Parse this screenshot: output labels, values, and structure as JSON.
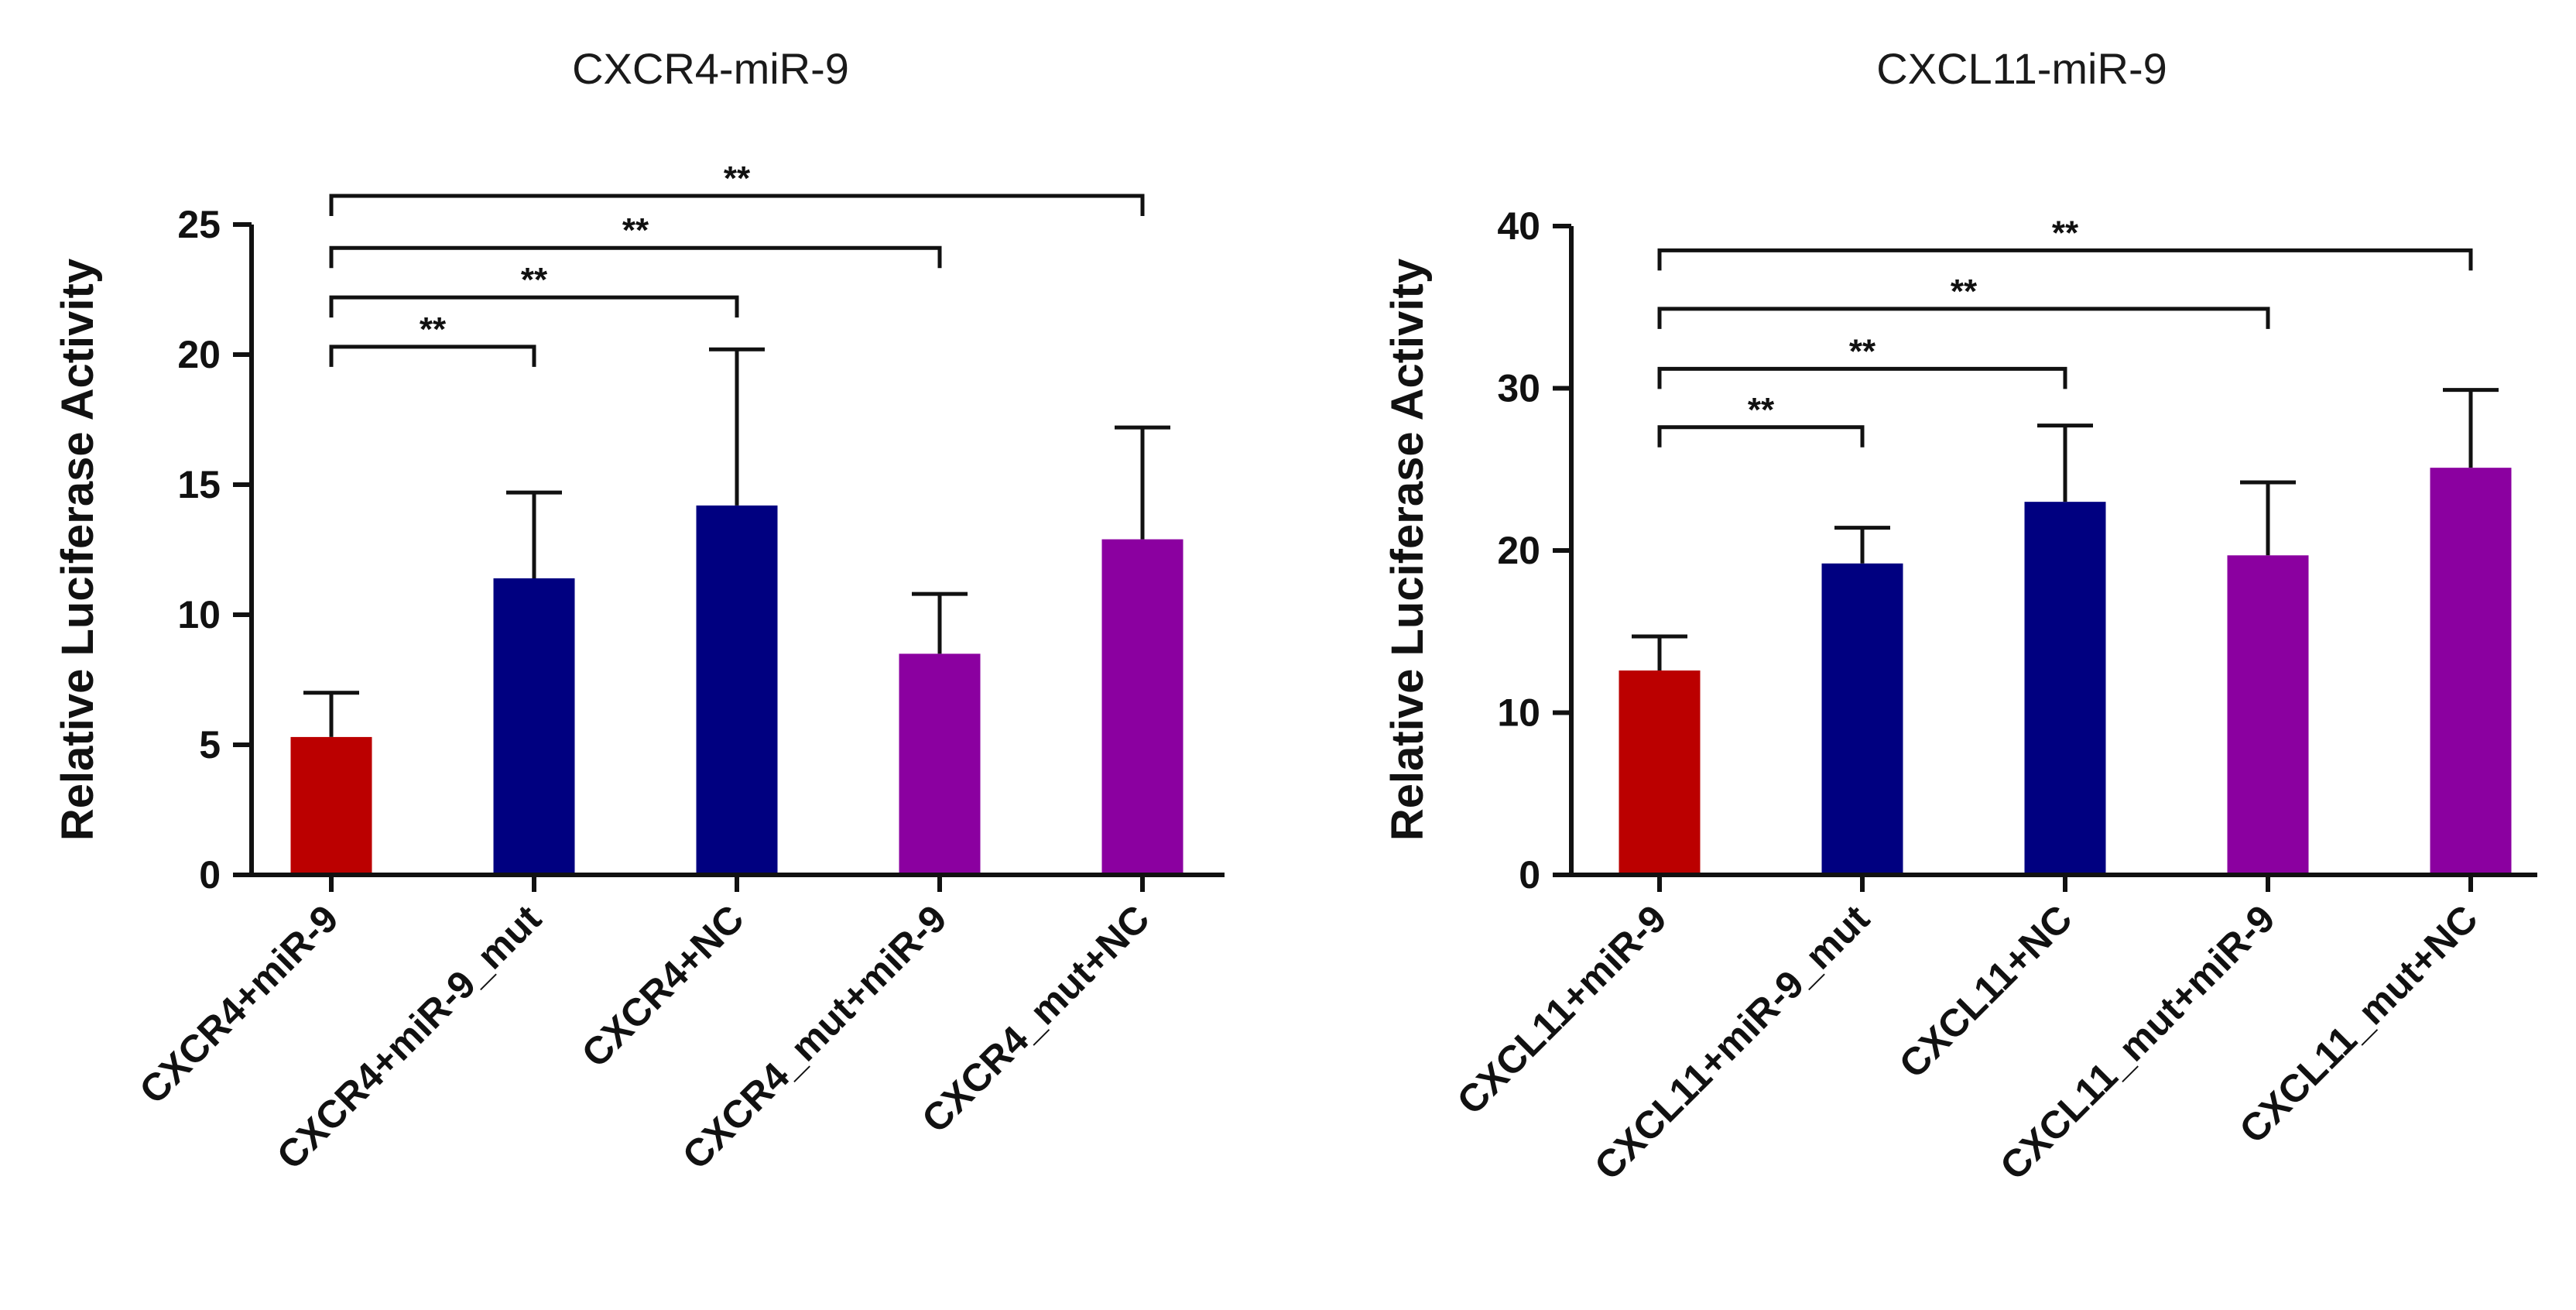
{
  "chart_data": [
    {
      "type": "bar",
      "title": "CXCR4-miR-9",
      "ylabel": "Relative Luciferase Activity",
      "xlabel": "",
      "ylim": [
        0,
        25
      ],
      "yticks": [
        0,
        5,
        10,
        15,
        20,
        25
      ],
      "categories": [
        "CXCR4+miR-9",
        "CXCR4+miR-9_mut",
        "CXCR4+NC",
        "CXCR4_mut+miR-9",
        "CXCR4_mut+NC"
      ],
      "values": [
        5.3,
        11.4,
        14.2,
        8.5,
        12.9
      ],
      "errors": [
        1.7,
        3.3,
        6.0,
        2.3,
        4.3
      ],
      "colors": [
        "#bb0000",
        "#000080",
        "#000080",
        "#8b00a0",
        "#8b00a0"
      ],
      "significance": [
        {
          "from": 0,
          "to": 1,
          "label": "**",
          "y": 20.3
        },
        {
          "from": 0,
          "to": 2,
          "label": "**",
          "y": 22.2
        },
        {
          "from": 0,
          "to": 3,
          "label": "**",
          "y": 24.1
        },
        {
          "from": 0,
          "to": 4,
          "label": "**",
          "y": 26.1
        }
      ]
    },
    {
      "type": "bar",
      "title": "CXCL11-miR-9",
      "ylabel": "Relative Luciferase Activity",
      "xlabel": "",
      "ylim": [
        0,
        40
      ],
      "yticks": [
        0,
        10,
        20,
        30,
        40
      ],
      "categories": [
        "CXCL11+miR-9",
        "CXCL11+miR-9_mut",
        "CXCL11+NC",
        "CXCL11_mut+miR-9",
        "CXCL11_mut+NC"
      ],
      "values": [
        12.6,
        19.2,
        23.0,
        19.7,
        25.1
      ],
      "errors": [
        2.1,
        2.2,
        4.7,
        4.5,
        4.8
      ],
      "colors": [
        "#bb0000",
        "#000080",
        "#000080",
        "#8b00a0",
        "#8b00a0"
      ],
      "significance": [
        {
          "from": 0,
          "to": 1,
          "label": "**",
          "y": 27.6
        },
        {
          "from": 0,
          "to": 2,
          "label": "**",
          "y": 31.2
        },
        {
          "from": 0,
          "to": 3,
          "label": "**",
          "y": 34.9
        },
        {
          "from": 0,
          "to": 4,
          "label": "**",
          "y": 38.5
        }
      ]
    }
  ]
}
